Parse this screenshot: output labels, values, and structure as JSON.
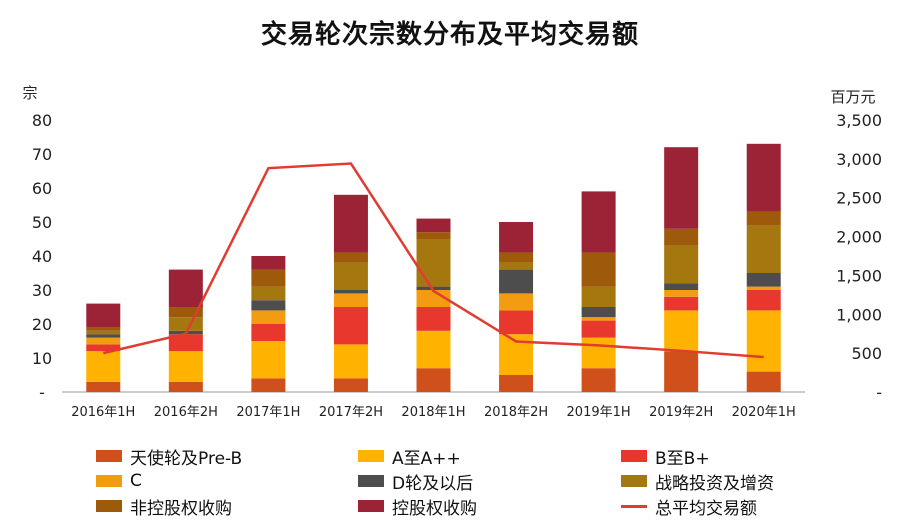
{
  "chart_data": {
    "type": "bar",
    "title": "交易轮次宗数分布及平均交易额",
    "left_axis_unit": "宗",
    "right_axis_unit": "百万元",
    "categories": [
      "2016年1H",
      "2016年2H",
      "2017年1H",
      "2017年2H",
      "2018年1H",
      "2018年2H",
      "2019年1H",
      "2019年2H",
      "2020年1H"
    ],
    "ylim": [
      0,
      80
    ],
    "y_ticks": [
      "-",
      "10",
      "20",
      "30",
      "40",
      "50",
      "60",
      "70",
      "80"
    ],
    "y2lim": [
      0,
      3500
    ],
    "y2_ticks": [
      "-",
      "500",
      "1,000",
      "1,500",
      "2,000",
      "2,500",
      "3,000",
      "3,500"
    ],
    "series": [
      {
        "name": "天使轮及Pre-B",
        "color": "#d0501c",
        "values": [
          3,
          3,
          4,
          4,
          7,
          5,
          7,
          12,
          6
        ]
      },
      {
        "name": "A至A++",
        "color": "#ffb300",
        "values": [
          9,
          9,
          11,
          10,
          11,
          12,
          9,
          12,
          18
        ]
      },
      {
        "name": "B至B+",
        "color": "#e8372c",
        "values": [
          2,
          5,
          5,
          11,
          7,
          7,
          5,
          4,
          6
        ]
      },
      {
        "name": "C",
        "color": "#f39c12",
        "values": [
          2,
          0,
          4,
          4,
          5,
          5,
          1,
          2,
          1
        ]
      },
      {
        "name": "D轮及以后",
        "color": "#4d4d4d",
        "values": [
          1,
          1,
          3,
          1,
          1,
          7,
          3,
          2,
          4
        ]
      },
      {
        "name": "战略投资及增资",
        "color": "#a5780f",
        "values": [
          1,
          4,
          4,
          8,
          14,
          2,
          6,
          11,
          14
        ]
      },
      {
        "name": "非控股权收购",
        "color": "#9c5a0a",
        "values": [
          1,
          3,
          5,
          3,
          2,
          3,
          10,
          5,
          4
        ]
      },
      {
        "name": "控股权收购",
        "color": "#9b2335",
        "values": [
          7,
          11,
          4,
          17,
          4,
          9,
          18,
          24,
          20
        ]
      }
    ],
    "line_series": {
      "name": "总平均交易额",
      "color": "#e03c31",
      "values": [
        500,
        750,
        2880,
        2940,
        1300,
        650,
        600,
        530,
        450
      ]
    },
    "grid": false,
    "legend_position": "bottom"
  }
}
